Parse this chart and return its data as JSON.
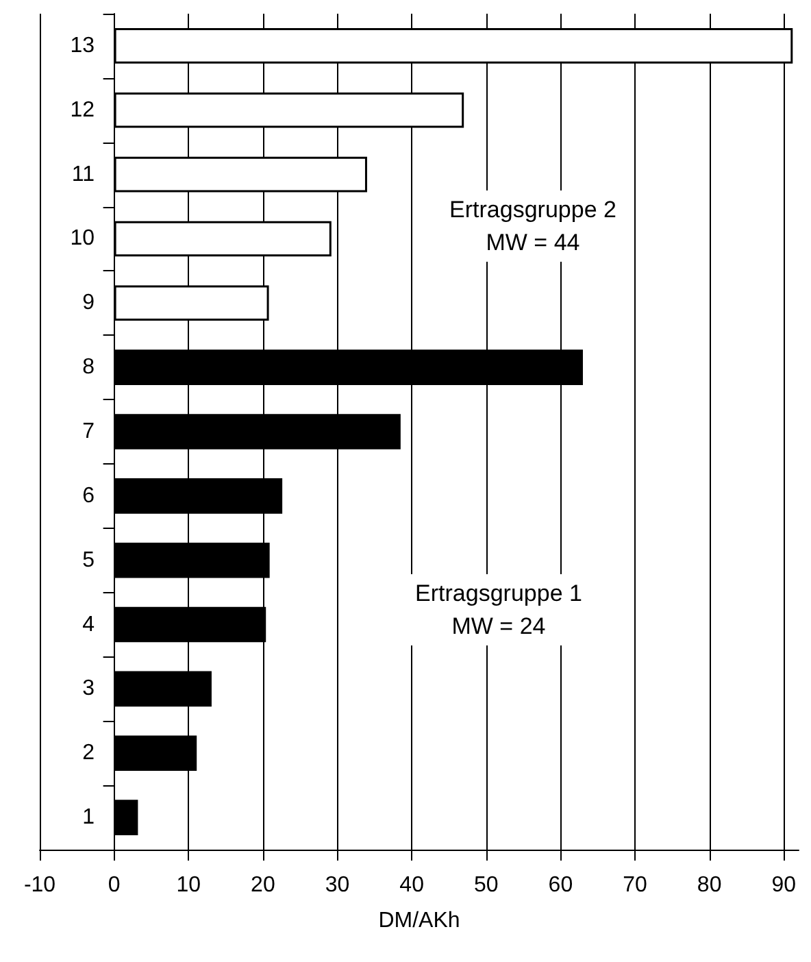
{
  "chart_data": {
    "type": "bar",
    "orientation": "horizontal",
    "xlabel": "DM/AKh",
    "categories": [
      "13",
      "12",
      "11",
      "10",
      "9",
      "8",
      "7",
      "6",
      "5",
      "4",
      "3",
      "2",
      "1"
    ],
    "series": [
      {
        "color": "#000000",
        "values": [
          null,
          null,
          null,
          null,
          null,
          63,
          38.5,
          22.6,
          20.9,
          20.4,
          13.1,
          11.1,
          3.2
        ]
      },
      {
        "color": "#ffffff",
        "values": [
          91.2,
          47,
          34,
          29.2,
          20.8,
          null,
          null,
          null,
          null,
          null,
          null,
          null,
          null
        ]
      }
    ],
    "xlim": [
      -10,
      92
    ],
    "xticks": [
      -10,
      0,
      10,
      20,
      30,
      40,
      50,
      60,
      70,
      80,
      90
    ],
    "grid": "x",
    "annotations": [
      "Ertragsgruppe 2\nMW = 44",
      "Ertragsgruppe 1\nMW = 24"
    ]
  }
}
